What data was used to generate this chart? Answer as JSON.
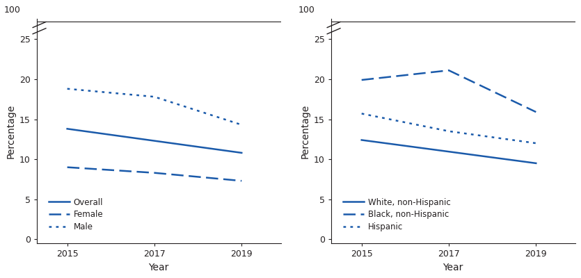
{
  "years": [
    2015,
    2017,
    2019
  ],
  "left": {
    "overall": [
      13.8,
      null,
      10.8
    ],
    "female": [
      9.0,
      8.3,
      7.3
    ],
    "male": [
      18.8,
      17.8,
      14.3
    ]
  },
  "right": {
    "white": [
      12.4,
      null,
      9.5
    ],
    "black": [
      19.9,
      21.1,
      15.9
    ],
    "hispanic": [
      15.7,
      13.5,
      12.0
    ]
  },
  "line_color": "#1a5aaa",
  "ylabel": "Percentage",
  "xlabel": "Year",
  "ylim_display": [
    0,
    25
  ],
  "xlim": [
    2014.3,
    2019.9
  ],
  "xticks": [
    2015,
    2017,
    2019
  ],
  "left_legend": [
    "Overall",
    "Female",
    "Male"
  ],
  "right_legend": [
    "White, non-Hispanic",
    "Black, non-Hispanic",
    "Hispanic"
  ],
  "axis_color": "#231f20",
  "top_label": "100",
  "normal_yticks": [
    0,
    5,
    10,
    15,
    20,
    25
  ]
}
